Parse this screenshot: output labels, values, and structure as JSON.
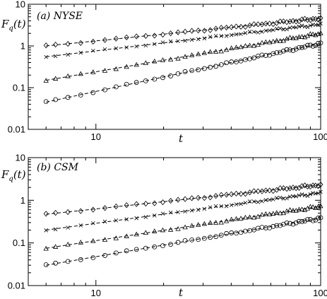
{
  "chart_data": [
    {
      "type": "scatter",
      "panel_label": "(a) NYSE",
      "xlabel": "t",
      "ylabel": "F_q(t)",
      "ylabel_main": "F",
      "ylabel_sub": "q",
      "ylabel_rest": "(t)",
      "xscale": "log",
      "yscale": "log",
      "xlim": [
        5,
        100
      ],
      "ylim": [
        0.01,
        10
      ],
      "xticks": [
        {
          "value": 10,
          "label": "10"
        },
        {
          "value": 100,
          "label": "100"
        }
      ],
      "yticks": [
        {
          "value": 0.01,
          "label": "0.01"
        },
        {
          "value": 0.1,
          "label": "0.1"
        },
        {
          "value": 1,
          "label": "1"
        },
        {
          "value": 10,
          "label": "10"
        }
      ],
      "series": [
        {
          "marker": "diamond",
          "x_start": 6,
          "x_end": 100,
          "y_start": 1.0,
          "y_end": 4.6
        },
        {
          "marker": "x",
          "x_start": 6,
          "x_end": 100,
          "y_start": 0.55,
          "y_end": 3.3
        },
        {
          "marker": "triangle",
          "x_start": 6,
          "x_end": 100,
          "y_start": 0.15,
          "y_end": 2.0
        },
        {
          "marker": "circle",
          "x_start": 6,
          "x_end": 100,
          "y_start": 0.045,
          "y_end": 1.15
        }
      ]
    },
    {
      "type": "scatter",
      "panel_label": "(b) CSM",
      "xlabel": "t",
      "ylabel": "F_q(t)",
      "ylabel_main": "F",
      "ylabel_sub": "q",
      "ylabel_rest": "(t)",
      "xscale": "log",
      "yscale": "log",
      "xlim": [
        5,
        100
      ],
      "ylim": [
        0.01,
        10
      ],
      "xticks": [
        {
          "value": 10,
          "label": "10"
        },
        {
          "value": 100,
          "label": "100"
        }
      ],
      "yticks": [
        {
          "value": 0.01,
          "label": "0.01"
        },
        {
          "value": 0.1,
          "label": "0.1"
        },
        {
          "value": 1,
          "label": "1"
        },
        {
          "value": 10,
          "label": "10"
        }
      ],
      "series": [
        {
          "marker": "diamond",
          "x_start": 6,
          "x_end": 100,
          "y_start": 0.47,
          "y_end": 2.3
        },
        {
          "marker": "x",
          "x_start": 6,
          "x_end": 100,
          "y_start": 0.2,
          "y_end": 1.5
        },
        {
          "marker": "triangle",
          "x_start": 6,
          "x_end": 100,
          "y_start": 0.075,
          "y_end": 0.72
        },
        {
          "marker": "circle",
          "x_start": 6,
          "x_end": 100,
          "y_start": 0.03,
          "y_end": 0.38
        }
      ]
    }
  ]
}
